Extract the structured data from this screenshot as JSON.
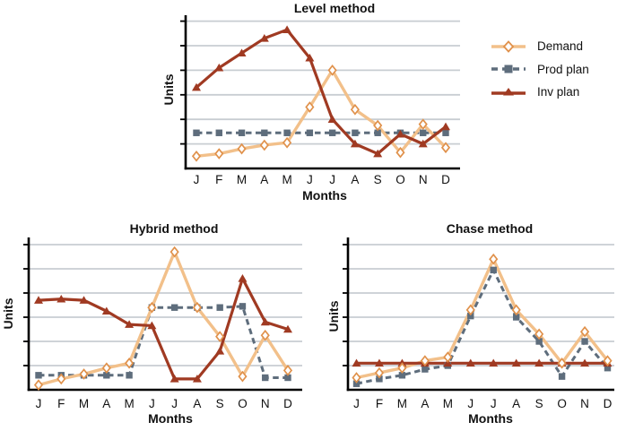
{
  "figure": {
    "legend": {
      "items": [
        {
          "label": "Demand",
          "series": "demand"
        },
        {
          "label": "Prod plan",
          "series": "prod_plan"
        },
        {
          "label": "Inv plan",
          "series": "inv_plan"
        }
      ]
    },
    "colors": {
      "demand_line": "#F2C08A",
      "demand_marker": "#E0914B",
      "prod_plan": "#5E6D7C",
      "inv_plan": "#A03A22",
      "grid": "#C8CDD2",
      "axis": "#000000",
      "text": "#111111"
    }
  },
  "chart_data": [
    {
      "id": "level",
      "type": "line",
      "title": "Level method",
      "xlabel": "Months",
      "ylabel": "Units",
      "categories": [
        "J",
        "F",
        "M",
        "A",
        "M",
        "J",
        "J",
        "A",
        "S",
        "O",
        "N",
        "D"
      ],
      "ylim": [
        0,
        62
      ],
      "grid": true,
      "gridline_values": [
        10,
        20,
        30,
        40,
        50,
        60
      ],
      "y_tick_labels": [],
      "legend_position": "outside-right",
      "series": [
        {
          "name": "Demand",
          "values": [
            5,
            6,
            8,
            9.5,
            10.5,
            25,
            40,
            24,
            17.5,
            6.5,
            18,
            8.5
          ]
        },
        {
          "name": "Prod plan",
          "values": [
            14.5,
            14.5,
            14.5,
            14.5,
            14.5,
            14.5,
            14.5,
            14.5,
            14.5,
            14.5,
            14.5,
            14.5
          ]
        },
        {
          "name": "Inv plan",
          "values": [
            33,
            41,
            47,
            53,
            56.5,
            45,
            20,
            10,
            6,
            14,
            10,
            17
          ]
        }
      ]
    },
    {
      "id": "hybrid",
      "type": "line",
      "title": "Hybrid method",
      "xlabel": "Months",
      "ylabel": "Units",
      "categories": [
        "J",
        "F",
        "M",
        "A",
        "M",
        "J",
        "J",
        "A",
        "S",
        "O",
        "N",
        "D"
      ],
      "ylim": [
        0,
        62
      ],
      "grid": true,
      "gridline_values": [
        10,
        20,
        30,
        40,
        50,
        60
      ],
      "y_tick_labels": [],
      "legend_position": "none",
      "series": [
        {
          "name": "Demand",
          "values": [
            2,
            4.5,
            6.5,
            9,
            11,
            34,
            57,
            34,
            22,
            5.5,
            22.5,
            8
          ]
        },
        {
          "name": "Prod plan",
          "values": [
            6,
            6,
            6,
            6,
            6,
            34,
            34,
            34,
            34,
            34.5,
            5,
            5
          ]
        },
        {
          "name": "Inv plan",
          "values": [
            37,
            37.5,
            37,
            32.5,
            27,
            26.5,
            4.5,
            4.5,
            16,
            46,
            28,
            25
          ]
        }
      ]
    },
    {
      "id": "chase",
      "type": "line",
      "title": "Chase method",
      "xlabel": "Months",
      "ylabel": "Units",
      "categories": [
        "J",
        "F",
        "M",
        "A",
        "M",
        "J",
        "J",
        "A",
        "S",
        "O",
        "N",
        "D"
      ],
      "ylim": [
        0,
        62
      ],
      "grid": true,
      "gridline_values": [
        10,
        20,
        30,
        40,
        50,
        60
      ],
      "y_tick_labels": [],
      "legend_position": "none",
      "series": [
        {
          "name": "Demand",
          "values": [
            5,
            7,
            9,
            12,
            13.5,
            33,
            54,
            33,
            23,
            11,
            24,
            12
          ]
        },
        {
          "name": "Prod plan",
          "values": [
            2.5,
            4.5,
            6,
            8.5,
            10,
            30.5,
            49.5,
            30,
            20,
            5.5,
            20,
            9
          ]
        },
        {
          "name": "Inv plan",
          "values": [
            11,
            11,
            11,
            11,
            11,
            11,
            11,
            11,
            11,
            11,
            11,
            11
          ]
        }
      ]
    }
  ]
}
